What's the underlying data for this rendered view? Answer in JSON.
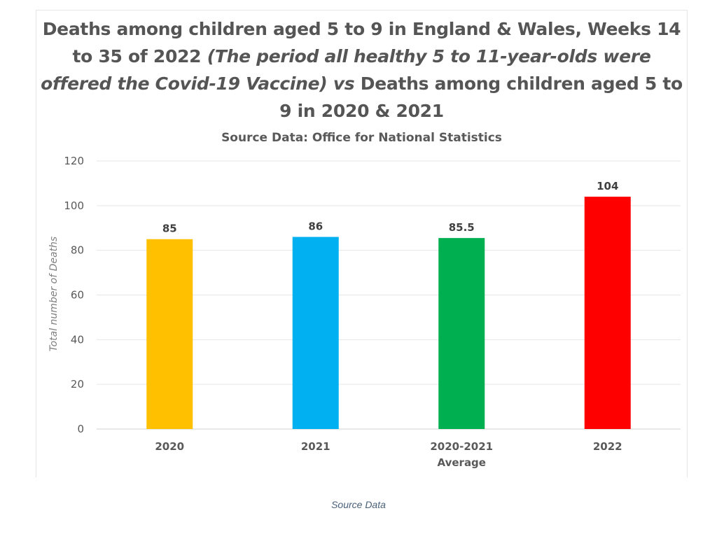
{
  "chart_data": {
    "type": "bar",
    "title_parts": [
      {
        "text": "Deaths among children aged 5 to 9 in England & Wales, Weeks 14 to 35 of 2022 ",
        "italic": false
      },
      {
        "text": "(The period all healthy 5 to 11-year-olds were offered the Covid-19 Vaccine)",
        "italic": true
      },
      {
        "text": " ",
        "italic": false
      },
      {
        "text": "vs",
        "italic": true
      },
      {
        "text": " Deaths among children aged 5 to 9 in 2020 & 2021",
        "italic": false
      }
    ],
    "subtitle": "Source Data: Office for National Statistics",
    "ylabel": "Total number of Deaths",
    "xlabel": "",
    "ylim": [
      0,
      120
    ],
    "yticks": [
      0,
      20,
      40,
      60,
      80,
      100,
      120
    ],
    "grid": true,
    "categories": [
      {
        "lines": [
          "2020"
        ]
      },
      {
        "lines": [
          "2021"
        ]
      },
      {
        "lines": [
          "2020-2021",
          "Average"
        ]
      },
      {
        "lines": [
          "2022"
        ]
      }
    ],
    "values": [
      85,
      86,
      85.5,
      104
    ],
    "value_labels": [
      "85",
      "86",
      "85.5",
      "104"
    ],
    "colors": [
      "#FFC000",
      "#00B0F0",
      "#00B050",
      "#FF0000"
    ]
  },
  "caption": {
    "text": "Source Data"
  }
}
